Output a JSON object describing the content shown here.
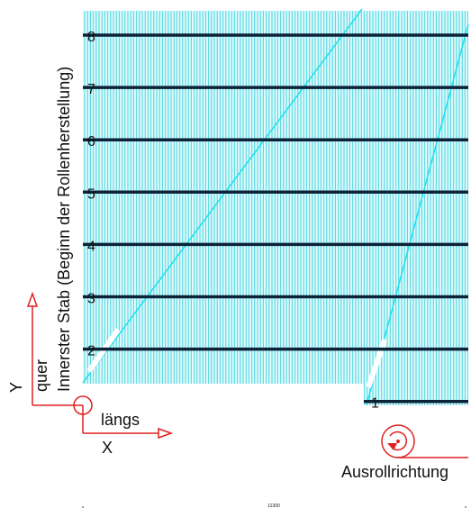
{
  "rows": [
    {
      "label": "8"
    },
    {
      "label": "7"
    },
    {
      "label": "6"
    },
    {
      "label": "5"
    },
    {
      "label": "4"
    },
    {
      "label": "3"
    },
    {
      "label": "2"
    },
    {
      "label": "1"
    }
  ],
  "labels": {
    "vertical_title": "Innerster Stab (Beginn der Rollenherstellung)",
    "axis_y_letter": "Y",
    "axis_y_word": "quer",
    "axis_x_word": "längs",
    "axis_x_letter": "X",
    "roll_direction": "Ausrollrichtung",
    "dimension": "11300"
  },
  "colors": {
    "mesh": "#3cd6e0",
    "bar": "#0b2238",
    "annotation": "#e02020"
  },
  "icons": {
    "origin": "origin-circle-icon",
    "roll": "roll-direction-icon"
  }
}
